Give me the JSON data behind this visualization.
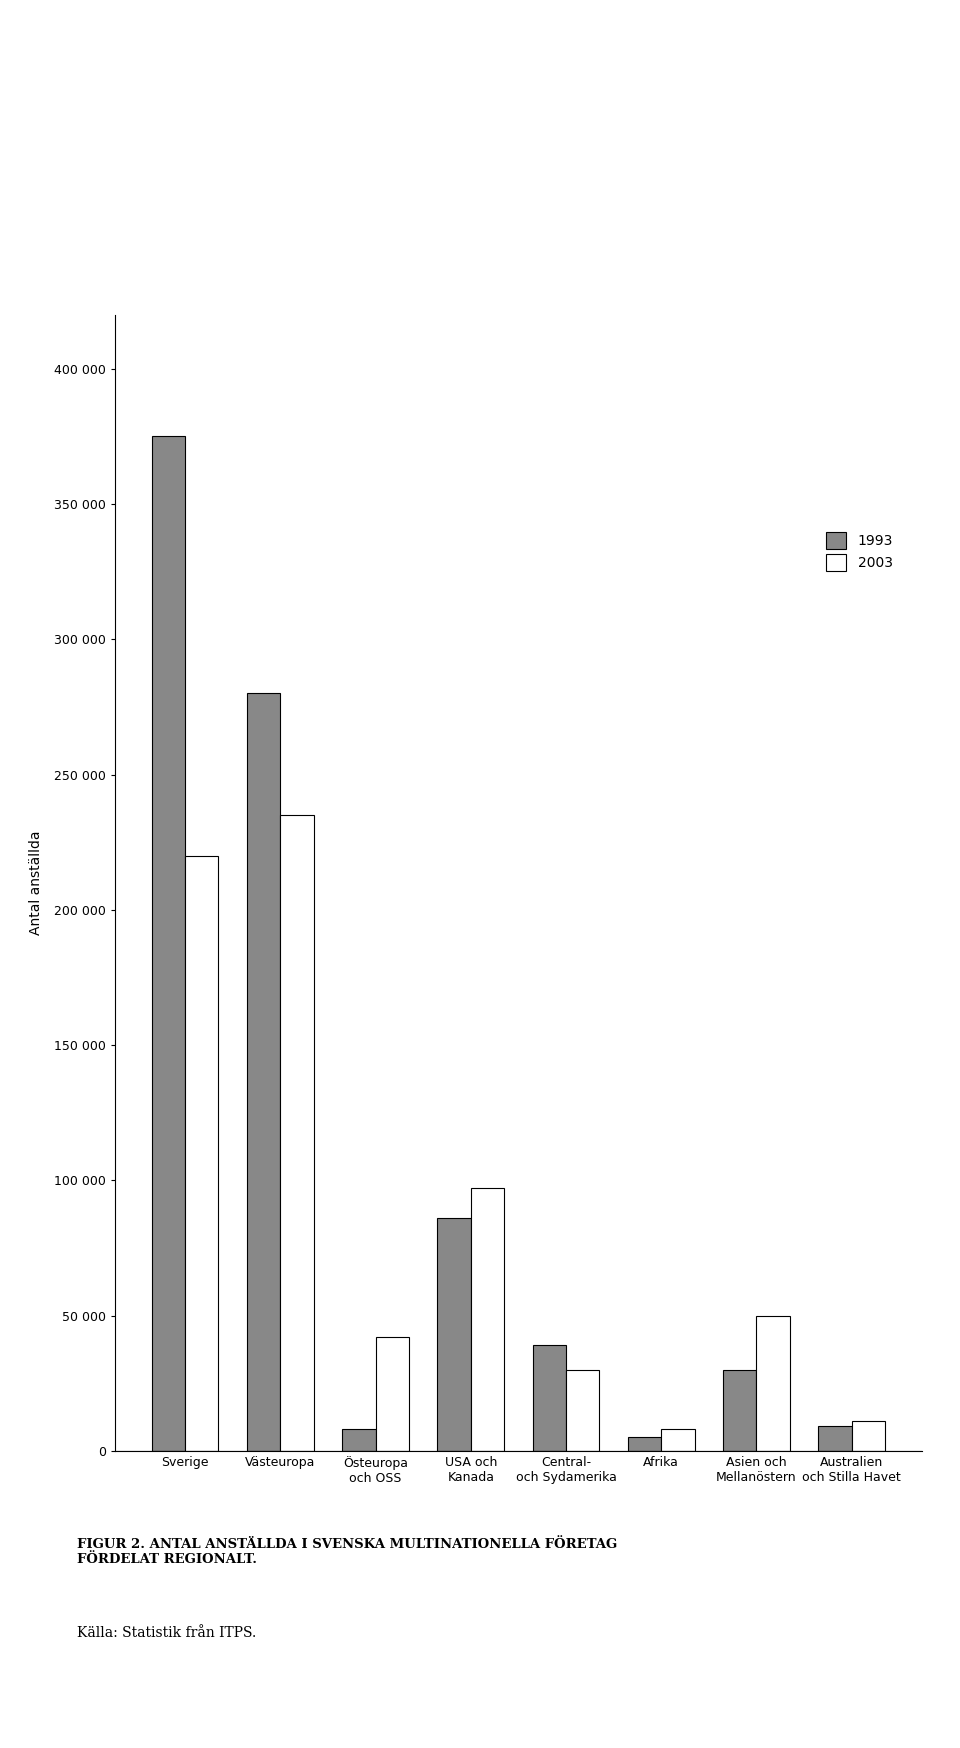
{
  "categories": [
    "Sverige",
    "Västeuropa",
    "Östeuropa\noch OSS",
    "USA och\nKanada",
    "Central-\noch Sydamerika",
    "Afrika",
    "Asien och\nMellanöstern",
    "Australien\noch Stilla Havet"
  ],
  "values_1993": [
    375000,
    280000,
    8000,
    86000,
    39000,
    5000,
    30000,
    9000
  ],
  "values_2003": [
    220000,
    235000,
    42000,
    97000,
    30000,
    8000,
    50000,
    11000
  ],
  "color_1993": "#888888",
  "color_2003": "#ffffff",
  "bar_edge_color": "#000000",
  "ylabel": "Antal anställda",
  "ylim": [
    0,
    420000
  ],
  "yticks": [
    0,
    50000,
    100000,
    150000,
    200000,
    250000,
    300000,
    350000,
    400000
  ],
  "ytick_labels": [
    "0",
    "50 000",
    "100 000",
    "150 000",
    "200 000",
    "250 000",
    "300 000",
    "350 000",
    "400 000"
  ],
  "legend_1993": "1993",
  "legend_2003": "2003",
  "figure_caption": "FIGUR 2. ANTAL ANSTÄLLDA I SVENSKA MULTINATIONELLA FÖRETAG\nFÖRDELAT REGIONALT.",
  "source_text": "Källa: Statistik från ITPS.",
  "background_color": "#ffffff",
  "text_color": "#000000",
  "bar_width": 0.35
}
